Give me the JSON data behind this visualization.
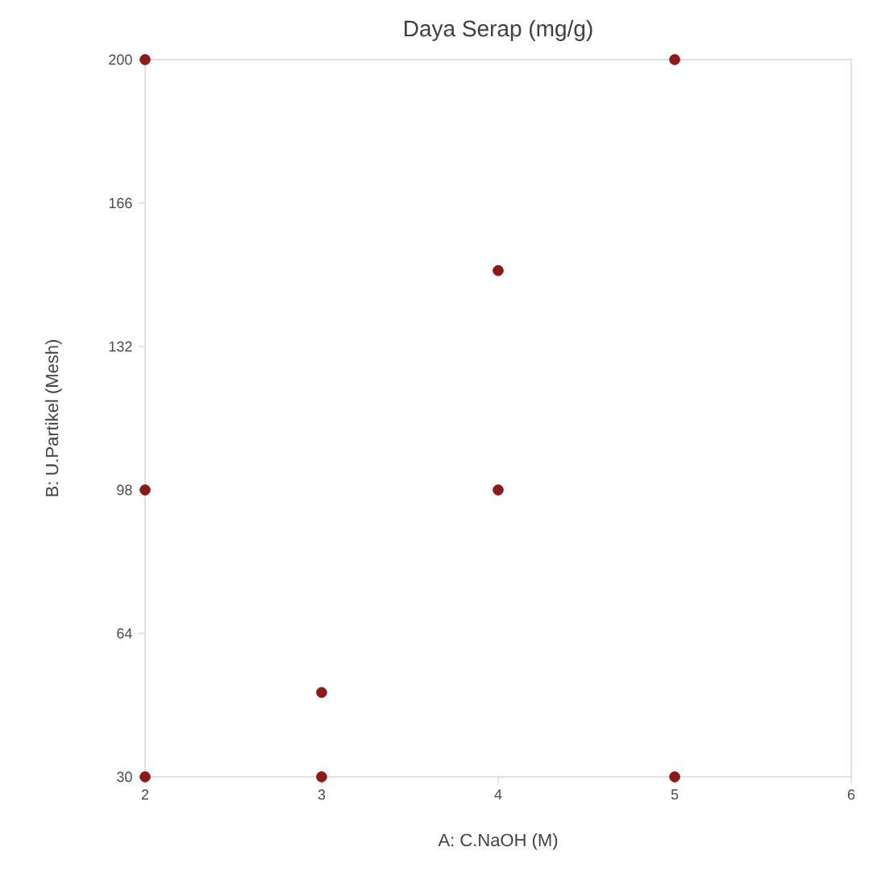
{
  "chart_data": {
    "type": "scatter",
    "title": "Daya Serap (mg/g)",
    "xlabel": "A: C.NaOH (M)",
    "ylabel": "B: U.Partikel (Mesh)",
    "xlim": [
      2,
      6
    ],
    "ylim": [
      30,
      200
    ],
    "xticks": [
      2,
      3,
      4,
      5,
      6
    ],
    "yticks": [
      30,
      64,
      98,
      132,
      166,
      200
    ],
    "x": [
      2,
      5,
      4,
      2,
      4,
      3,
      2,
      3,
      5
    ],
    "values": [
      200,
      200,
      150,
      98,
      98,
      50,
      30,
      30,
      30
    ],
    "color": "#8b1a1a",
    "grid": false
  }
}
